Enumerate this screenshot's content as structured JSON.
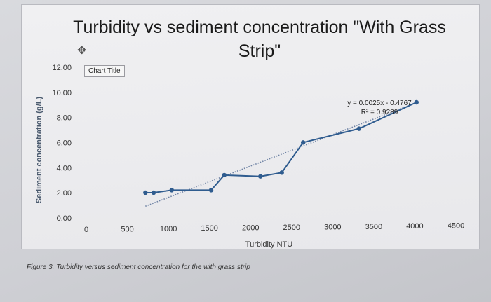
{
  "chart_data": {
    "type": "line",
    "title": "Turbidity vs sediment concentration \"With Grass Strip\"",
    "xlabel": "Turbidity NTU",
    "ylabel": "Sediment concentration (g/L)",
    "xlim": [
      0,
      4500
    ],
    "ylim": [
      0,
      12
    ],
    "x_ticks": [
      "0",
      "500",
      "1000",
      "1500",
      "2000",
      "2500",
      "3000",
      "3500",
      "4000",
      "4500"
    ],
    "y_ticks": [
      "0.00",
      "2.00",
      "4.00",
      "6.00",
      "8.00",
      "10.00",
      "12.00"
    ],
    "series": [
      {
        "x": [
          720,
          820,
          1040,
          1520,
          1680,
          2120,
          2380,
          2640,
          3320,
          4020
        ],
        "y": [
          2.4,
          2.4,
          2.6,
          2.6,
          3.8,
          3.7,
          4.0,
          6.4,
          7.5,
          9.6
        ],
        "color": "#2f5c8f",
        "marker": "circle"
      }
    ],
    "trendline": {
      "slope": 0.0025,
      "intercept": -0.4767,
      "equation": "y = 0.0025x - 0.4767",
      "r_squared": "R² = 0.9289",
      "style": "dotted",
      "color": "#6f83a5"
    },
    "grid": false,
    "legend": false
  },
  "chart_title_tag": "Chart Title",
  "move_icon": "move-arrows-icon",
  "caption": "Figure 3. Turbidity versus sediment concentration for the with grass strip"
}
